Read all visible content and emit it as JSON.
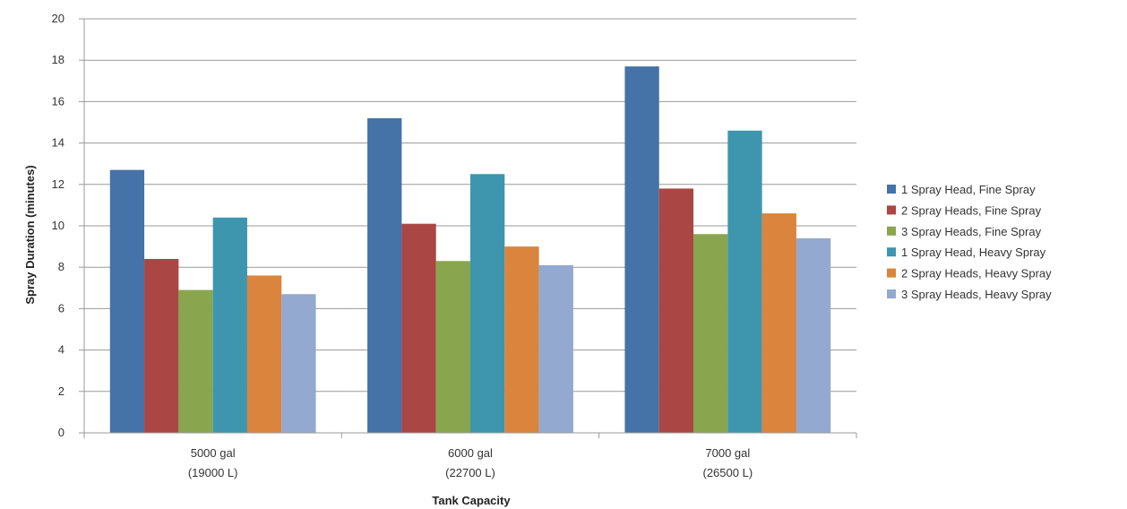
{
  "chart_data": {
    "type": "bar",
    "title": "",
    "xlabel": "Tank Capacity",
    "ylabel": "Spray Duration (minutes)",
    "ylim": [
      0,
      20
    ],
    "yticks": [
      0,
      2,
      4,
      6,
      8,
      10,
      12,
      14,
      16,
      18,
      20
    ],
    "grid": true,
    "legend_position": "right",
    "categories": [
      [
        "5000 gal",
        "(19000 L)"
      ],
      [
        "6000 gal",
        "(22700 L)"
      ],
      [
        "7000 gal",
        "(26500 L)"
      ]
    ],
    "series": [
      {
        "name": "1 Spray Head, Fine Spray",
        "color": "#4572A7",
        "values": [
          12.7,
          15.2,
          17.7
        ]
      },
      {
        "name": "2 Spray Heads, Fine Spray",
        "color": "#AA4643",
        "values": [
          8.4,
          10.1,
          11.8
        ]
      },
      {
        "name": "3 Spray Heads, Fine Spray",
        "color": "#89A54E",
        "values": [
          6.9,
          8.3,
          9.6
        ]
      },
      {
        "name": "1 Spray Head, Heavy Spray",
        "color": "#3D96AE",
        "values": [
          10.4,
          12.5,
          14.6
        ]
      },
      {
        "name": "2 Spray Heads, Heavy Spray",
        "color": "#DB843D",
        "values": [
          7.6,
          9.0,
          10.6
        ]
      },
      {
        "name": "3 Spray Heads, Heavy Spray",
        "color": "#93A9CF",
        "values": [
          6.7,
          8.1,
          9.4
        ]
      }
    ]
  }
}
